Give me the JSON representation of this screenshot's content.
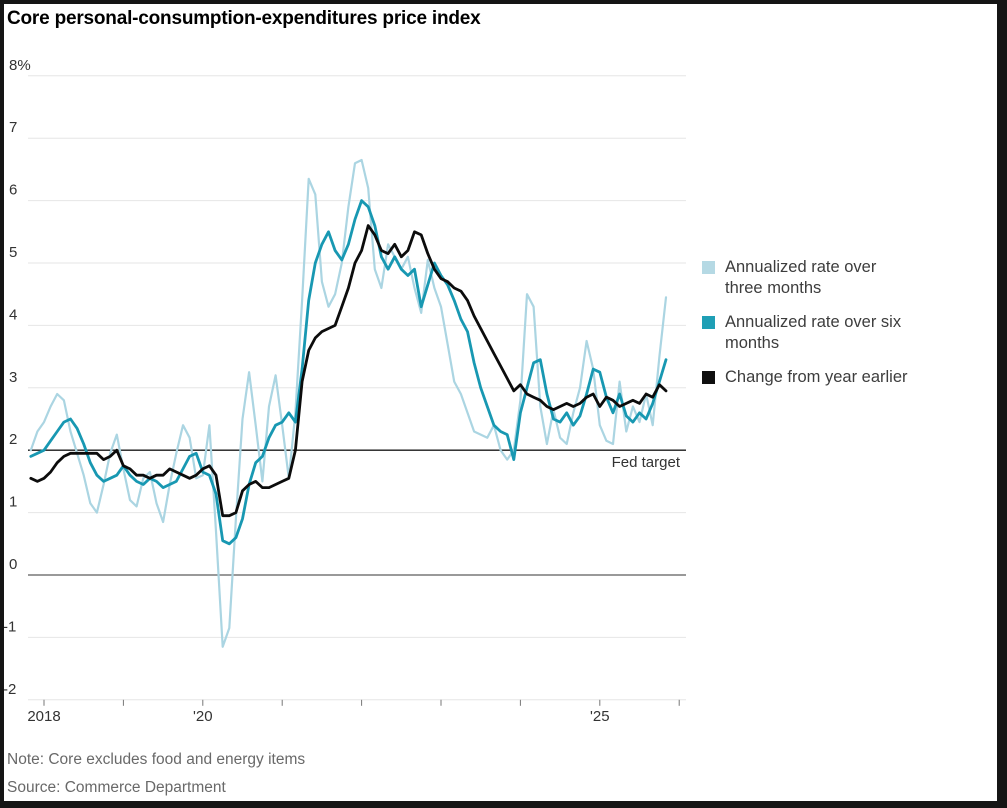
{
  "title": "Core personal-consumption-expenditures price index",
  "legend": {
    "items": [
      {
        "label": "Annualized rate over\nthree months",
        "color": "#b5d9e4"
      },
      {
        "label": "Annualized rate over six\nmonths",
        "color": "#1f9fb5"
      },
      {
        "label": "Change from year earlier",
        "color": "#0f0f0f"
      }
    ]
  },
  "fed_target_label": "Fed target",
  "note": "Note: Core excludes food and energy items",
  "source": "Source: Commerce Department",
  "colors": {
    "three_month_line": "#abd5e2",
    "six_month_line": "#1898b2",
    "yoy_line": "#0c0c0c",
    "gridline": "#e6e6e6",
    "zero_line": "#999999",
    "fed_target_line": "#1a1a1a",
    "axis_text": "#333333"
  },
  "chart_data": {
    "type": "line",
    "title": "Core personal-consumption-expenditures price index",
    "x_start": "2017-11",
    "x_end": "2025-11",
    "frequency": "monthly",
    "ylim": [
      -2,
      8
    ],
    "grid": "horizontal",
    "legend_position": "right",
    "fed_target": {
      "value": 2,
      "label": "Fed target"
    },
    "y_axis": {
      "ticks": [
        {
          "value": 8,
          "label": "8%"
        },
        {
          "value": 7,
          "label": "7"
        },
        {
          "value": 6,
          "label": "6"
        },
        {
          "value": 5,
          "label": "5"
        },
        {
          "value": 4,
          "label": "4"
        },
        {
          "value": 3,
          "label": "3"
        },
        {
          "value": 2,
          "label": "2"
        },
        {
          "value": 1,
          "label": "1"
        },
        {
          "value": 0,
          "label": "0"
        },
        {
          "value": -1,
          "label": "-1"
        },
        {
          "value": -2,
          "label": "-2"
        }
      ]
    },
    "x_axis": {
      "ticks": [
        {
          "year": 2018,
          "label": "2018"
        },
        {
          "year": 2019,
          "label": ""
        },
        {
          "year": 2020,
          "label": "'20"
        },
        {
          "year": 2021,
          "label": ""
        },
        {
          "year": 2022,
          "label": ""
        },
        {
          "year": 2023,
          "label": ""
        },
        {
          "year": 2024,
          "label": ""
        },
        {
          "year": 2025,
          "label": "'25"
        },
        {
          "year": 2026,
          "label": ""
        }
      ]
    },
    "series": [
      {
        "key": "three_month",
        "name": "Annualized rate over three months",
        "color": "#abd5e2",
        "values": [
          2.0,
          2.3,
          2.45,
          2.7,
          2.9,
          2.8,
          2.3,
          1.95,
          1.6,
          1.15,
          1.0,
          1.45,
          1.95,
          2.25,
          1.7,
          1.2,
          1.1,
          1.55,
          1.65,
          1.15,
          0.85,
          1.45,
          1.95,
          2.4,
          2.2,
          1.55,
          1.6,
          2.4,
          0.7,
          -1.15,
          -0.85,
          0.9,
          2.5,
          3.25,
          2.4,
          1.5,
          2.7,
          3.2,
          2.4,
          1.55,
          2.6,
          4.4,
          6.35,
          6.1,
          4.7,
          4.3,
          4.5,
          5.0,
          5.9,
          6.6,
          6.65,
          6.2,
          4.9,
          4.6,
          5.3,
          5.1,
          4.9,
          5.1,
          4.6,
          4.2,
          5.05,
          4.6,
          4.3,
          3.7,
          3.1,
          2.9,
          2.6,
          2.3,
          2.25,
          2.2,
          2.4,
          2.0,
          1.85,
          2.0,
          2.8,
          4.5,
          4.3,
          2.7,
          2.1,
          2.65,
          2.2,
          2.1,
          2.6,
          3.0,
          3.75,
          3.3,
          2.4,
          2.15,
          2.1,
          3.1,
          2.3,
          2.7,
          2.45,
          2.9,
          2.4,
          3.5,
          4.45
        ]
      },
      {
        "key": "six_month",
        "name": "Annualized rate over six months",
        "color": "#1898b2",
        "values": [
          1.9,
          1.95,
          2.0,
          2.15,
          2.3,
          2.45,
          2.5,
          2.35,
          2.1,
          1.8,
          1.6,
          1.5,
          1.55,
          1.6,
          1.75,
          1.6,
          1.5,
          1.45,
          1.55,
          1.5,
          1.4,
          1.45,
          1.5,
          1.7,
          1.9,
          1.95,
          1.65,
          1.6,
          1.3,
          0.55,
          0.5,
          0.6,
          0.9,
          1.45,
          1.8,
          1.9,
          2.2,
          2.4,
          2.45,
          2.6,
          2.45,
          3.3,
          4.4,
          5.0,
          5.3,
          5.5,
          5.2,
          5.05,
          5.3,
          5.7,
          6.0,
          5.9,
          5.6,
          5.1,
          4.9,
          5.1,
          4.9,
          4.8,
          4.9,
          4.3,
          4.65,
          5.0,
          4.8,
          4.65,
          4.4,
          4.1,
          3.9,
          3.4,
          3.0,
          2.7,
          2.4,
          2.3,
          2.25,
          1.85,
          2.6,
          3.0,
          3.4,
          3.45,
          2.9,
          2.5,
          2.45,
          2.6,
          2.4,
          2.55,
          2.9,
          3.3,
          3.25,
          2.85,
          2.6,
          2.9,
          2.55,
          2.45,
          2.6,
          2.5,
          2.75,
          3.1,
          3.45
        ]
      },
      {
        "key": "year_over_year",
        "name": "Change from year earlier",
        "color": "#0c0c0c",
        "values": [
          1.55,
          1.5,
          1.55,
          1.65,
          1.8,
          1.9,
          1.95,
          1.95,
          1.95,
          1.95,
          1.95,
          1.85,
          1.9,
          2.0,
          1.75,
          1.7,
          1.6,
          1.6,
          1.55,
          1.6,
          1.6,
          1.7,
          1.65,
          1.6,
          1.55,
          1.6,
          1.7,
          1.75,
          1.6,
          0.95,
          0.95,
          1.0,
          1.35,
          1.45,
          1.5,
          1.4,
          1.4,
          1.45,
          1.5,
          1.55,
          2.0,
          3.1,
          3.6,
          3.8,
          3.9,
          3.95,
          4.0,
          4.3,
          4.6,
          5.0,
          5.2,
          5.6,
          5.45,
          5.2,
          5.15,
          5.3,
          5.1,
          5.2,
          5.5,
          5.45,
          5.15,
          4.9,
          4.75,
          4.7,
          4.6,
          4.55,
          4.4,
          4.15,
          3.95,
          3.75,
          3.55,
          3.35,
          3.15,
          2.95,
          3.05,
          2.9,
          2.85,
          2.8,
          2.7,
          2.65,
          2.7,
          2.75,
          2.7,
          2.75,
          2.85,
          2.9,
          2.7,
          2.85,
          2.8,
          2.7,
          2.75,
          2.8,
          2.75,
          2.9,
          2.85,
          3.05,
          2.95
        ]
      }
    ]
  }
}
